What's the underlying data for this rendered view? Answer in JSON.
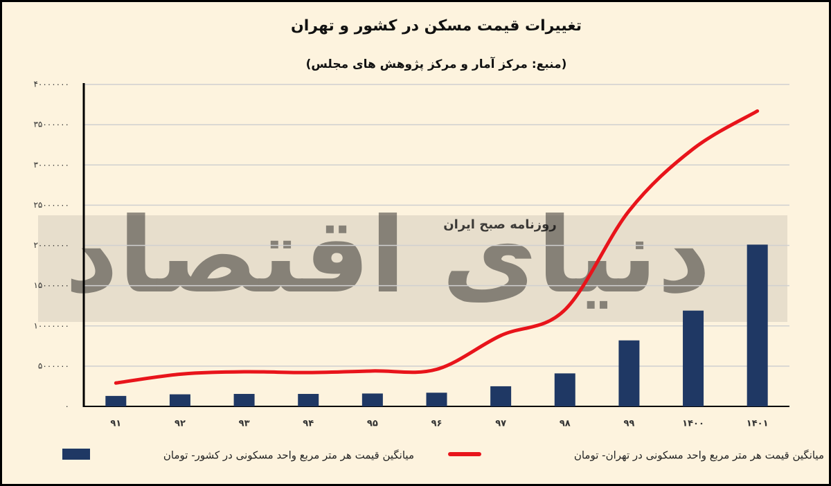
{
  "chart_data": {
    "type": "bar-line",
    "title": "تغییرات قیمت مسکن در کشور و تهران",
    "subtitle": "(منبع: مرکز آمار و مرکز پژوهش های مجلس)",
    "watermark": [
      "دنیای اقتصاد",
      "روزنامه صبح ایران"
    ],
    "categories": [
      "۹۱",
      "۹۲",
      "۹۳",
      "۹۴",
      "۹۵",
      "۹۶",
      "۹۷",
      "۹۸",
      "۹۹",
      "۱۴۰۰",
      "۱۴۰۱"
    ],
    "series": [
      {
        "name": "میانگین قیمت هر متر مربع واحد مسکونی در کشور- تومان",
        "type": "bar",
        "color": "#1f3864",
        "values": [
          1300000,
          1500000,
          1550000,
          1550000,
          1600000,
          1700000,
          2500000,
          4100000,
          8200000,
          11900000,
          20100000
        ]
      },
      {
        "name": "میانگین قیمت هر متر مربع واحد مسکونی در تهران- تومان",
        "type": "line",
        "color": "#e8141b",
        "values": [
          2900000,
          4000000,
          4300000,
          4200000,
          4400000,
          4600000,
          8800000,
          12000000,
          24300000,
          32000000,
          36700000
        ]
      }
    ],
    "ylim": [
      0,
      40000000
    ],
    "yticks": [
      {
        "value": 0,
        "label": "۰"
      },
      {
        "value": 5000000,
        "label": "۵۰۰۰۰۰۰"
      },
      {
        "value": 10000000,
        "label": "۱۰۰۰۰۰۰۰"
      },
      {
        "value": 15000000,
        "label": "۱۵۰۰۰۰۰۰"
      },
      {
        "value": 20000000,
        "label": "۲۰۰۰۰۰۰۰"
      },
      {
        "value": 25000000,
        "label": "۲۵۰۰۰۰۰۰"
      },
      {
        "value": 30000000,
        "label": "۳۰۰۰۰۰۰۰"
      },
      {
        "value": 35000000,
        "label": "۳۵۰۰۰۰۰۰"
      },
      {
        "value": 40000000,
        "label": "۴۰۰۰۰۰۰۰"
      }
    ],
    "grid": true,
    "legend": "bottom"
  }
}
